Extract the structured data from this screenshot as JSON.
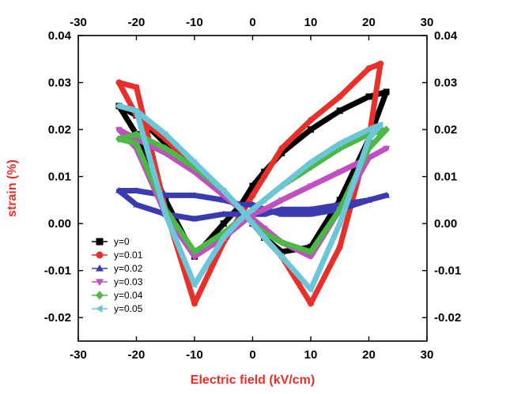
{
  "chart_data": {
    "type": "line",
    "xlabel": "Electric field (kV/cm)",
    "ylabel": "strain (%)",
    "xlim": [
      -30,
      30
    ],
    "ylim": [
      -0.025,
      0.04
    ],
    "x_ticks": [
      -30,
      -20,
      -10,
      0,
      10,
      20,
      30
    ],
    "y_ticks": [
      -0.02,
      -0.01,
      0.0,
      0.01,
      0.02,
      0.03,
      0.04
    ],
    "x_tick_labels": [
      "-30",
      "-20",
      "-10",
      "0",
      "10",
      "20",
      "30"
    ],
    "y_tick_labels_left": [
      "-0.02",
      "-0.01",
      "0.00",
      "0.01",
      "0.02",
      "0.03",
      "0.04"
    ],
    "y_tick_labels_right": [
      "-0.02",
      "-0.01",
      "0.00",
      "0.01",
      "0.02",
      "0.03",
      "0.04"
    ],
    "mirrored_axes": true,
    "grid": false,
    "legend_position": "bottom-left",
    "series": [
      {
        "name": "y=0",
        "color": "#000000",
        "marker": "square",
        "x": [
          23,
          20,
          15,
          10,
          5,
          2,
          0,
          -2,
          -5,
          -10,
          -15,
          -20,
          -23,
          -20,
          -15,
          -10,
          -5,
          -2,
          0,
          2,
          5,
          10,
          15,
          20,
          23
        ],
        "y": [
          0.028,
          0.027,
          0.024,
          0.02,
          0.015,
          0.011,
          0.008,
          0.004,
          0.0,
          -0.007,
          0.005,
          0.019,
          0.025,
          0.023,
          0.017,
          0.012,
          0.006,
          0.003,
          0.0,
          -0.003,
          -0.006,
          -0.005,
          0.005,
          0.018,
          0.028
        ]
      },
      {
        "name": "y=0.01",
        "color": "#e8302a",
        "marker": "circle",
        "x": [
          22,
          20,
          15,
          10,
          5,
          2,
          0,
          -2,
          -5,
          -10,
          -15,
          -20,
          -23,
          -20,
          -15,
          -10,
          -5,
          -2,
          0,
          2,
          5,
          10,
          15,
          20,
          22
        ],
        "y": [
          0.034,
          0.033,
          0.027,
          0.022,
          0.016,
          0.01,
          0.006,
          0.002,
          -0.004,
          -0.017,
          0.003,
          0.029,
          0.03,
          0.023,
          0.018,
          0.012,
          0.007,
          0.003,
          0.0,
          -0.003,
          -0.007,
          -0.017,
          -0.005,
          0.018,
          0.034
        ]
      },
      {
        "name": "y=0.02",
        "color": "#3b3bb0",
        "marker": "triangle-up",
        "x": [
          23,
          20,
          15,
          10,
          5,
          2,
          0,
          -2,
          -5,
          -10,
          -15,
          -20,
          -23,
          -20,
          -15,
          -10,
          -5,
          -2,
          0,
          2,
          5,
          10,
          15,
          20,
          23
        ],
        "y": [
          0.006,
          0.005,
          0.004,
          0.003,
          0.003,
          0.002,
          0.002,
          0.002,
          0.002,
          0.001,
          0.002,
          0.004,
          0.007,
          0.007,
          0.006,
          0.006,
          0.005,
          0.004,
          0.004,
          0.003,
          0.002,
          0.002,
          0.003,
          0.005,
          0.006
        ]
      },
      {
        "name": "y=0.03",
        "color": "#c050c0",
        "marker": "triangle-down",
        "x": [
          23,
          20,
          15,
          10,
          5,
          2,
          0,
          -2,
          -5,
          -10,
          -15,
          -20,
          -23,
          -20,
          -15,
          -10,
          -5,
          -2,
          0,
          2,
          5,
          10,
          15,
          20,
          23
        ],
        "y": [
          0.016,
          0.014,
          0.011,
          0.008,
          0.005,
          0.003,
          0.002,
          0.0,
          -0.003,
          -0.007,
          0.002,
          0.016,
          0.02,
          0.018,
          0.015,
          0.011,
          0.006,
          0.003,
          0.001,
          -0.001,
          -0.004,
          -0.007,
          0.003,
          0.014,
          0.016
        ]
      },
      {
        "name": "y=0.04",
        "color": "#4db848",
        "marker": "diamond",
        "x": [
          23,
          20,
          15,
          10,
          5,
          2,
          0,
          -2,
          -5,
          -10,
          -15,
          -20,
          -23,
          -20,
          -15,
          -10,
          -5,
          -2,
          0,
          2,
          5,
          10,
          15,
          20,
          23
        ],
        "y": [
          0.02,
          0.019,
          0.016,
          0.012,
          0.008,
          0.005,
          0.003,
          0.001,
          -0.002,
          -0.006,
          0.003,
          0.017,
          0.018,
          0.019,
          0.016,
          0.012,
          0.007,
          0.003,
          0.0,
          -0.002,
          -0.004,
          -0.006,
          0.003,
          0.016,
          0.02
        ]
      },
      {
        "name": "y=0.05",
        "color": "#6cc6d8",
        "marker": "triangle-left",
        "x": [
          22,
          20,
          15,
          10,
          5,
          2,
          0,
          -2,
          -5,
          -10,
          -15,
          -20,
          -23,
          -20,
          -15,
          -10,
          -5,
          -2,
          0,
          2,
          5,
          10,
          15,
          20,
          22
        ],
        "y": [
          0.021,
          0.02,
          0.017,
          0.013,
          0.008,
          0.005,
          0.003,
          0.001,
          -0.003,
          -0.013,
          0.002,
          0.024,
          0.025,
          0.024,
          0.019,
          0.013,
          0.007,
          0.003,
          0.0,
          -0.003,
          -0.007,
          -0.014,
          0.0,
          0.018,
          0.021
        ]
      }
    ]
  }
}
